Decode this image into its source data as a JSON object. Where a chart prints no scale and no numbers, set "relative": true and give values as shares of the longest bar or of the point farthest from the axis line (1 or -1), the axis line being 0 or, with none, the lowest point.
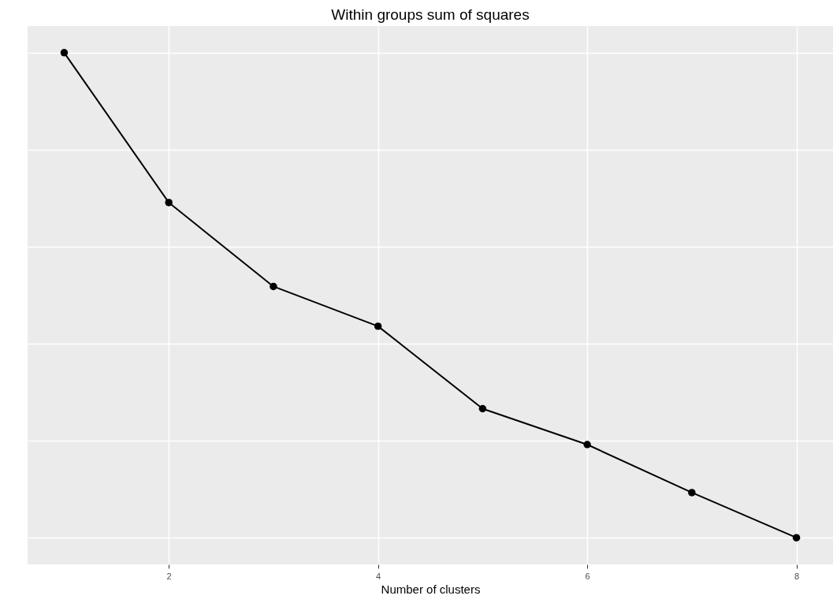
{
  "chart_data": {
    "type": "line",
    "title": "Within groups sum of squares",
    "xlabel": "Number of clusters",
    "relative": true,
    "x": [
      1,
      2,
      3,
      4,
      5,
      6,
      7,
      8
    ],
    "series": [
      {
        "color": "#000000",
        "values": [
          1,
          0.691,
          0.518,
          0.436,
          0.266,
          0.192,
          0.093,
          0
        ]
      }
    ],
    "xlim": [
      0.65,
      8.35
    ],
    "xticks": [
      2,
      4,
      6,
      8
    ],
    "grid": true,
    "marker": "circle",
    "line_style": "solid"
  }
}
